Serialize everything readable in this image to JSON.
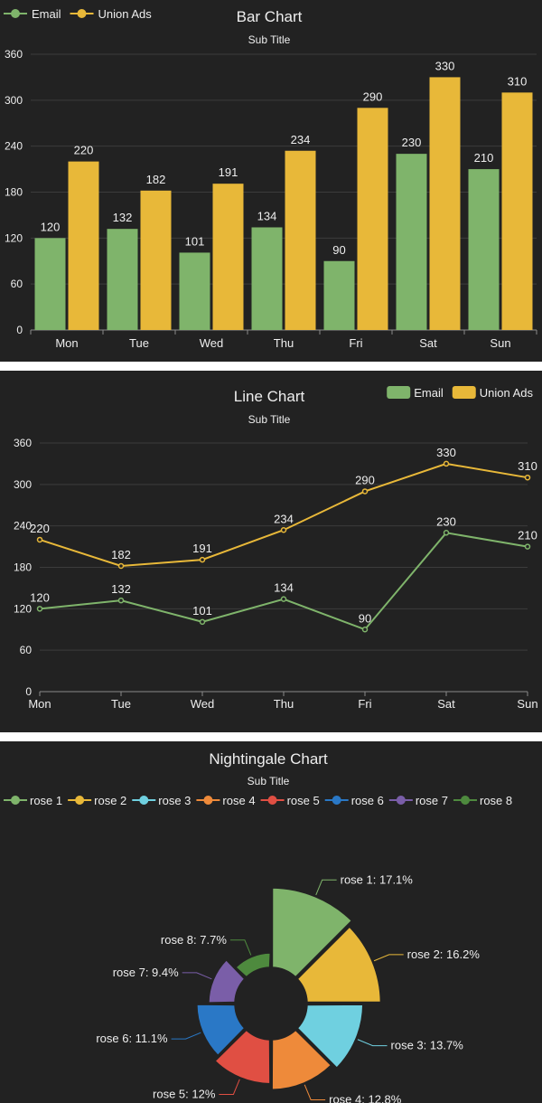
{
  "colors": {
    "background": "#222222",
    "text": "#eeeeee",
    "grid": "#3c3c3c",
    "axis": "#8a8a8a",
    "email": "#7fb46b",
    "union_ads": "#e8b839"
  },
  "chart_data": [
    {
      "type": "bar",
      "title": "Bar Chart",
      "subtitle": "Sub Title",
      "legend": {
        "position": "top-left",
        "items": [
          "Email",
          "Union Ads"
        ]
      },
      "categories": [
        "Mon",
        "Tue",
        "Wed",
        "Thu",
        "Fri",
        "Sat",
        "Sun"
      ],
      "series": [
        {
          "name": "Email",
          "values": [
            120,
            132,
            101,
            134,
            90,
            230,
            210
          ]
        },
        {
          "name": "Union Ads",
          "values": [
            220,
            182,
            191,
            234,
            290,
            330,
            310
          ]
        }
      ],
      "ylim": [
        0,
        360
      ],
      "yticks": [
        0,
        60,
        120,
        180,
        240,
        300,
        360
      ],
      "grid": true
    },
    {
      "type": "line",
      "title": "Line Chart",
      "subtitle": "Sub Title",
      "legend": {
        "position": "top-right",
        "items": [
          "Email",
          "Union Ads"
        ]
      },
      "categories": [
        "Mon",
        "Tue",
        "Wed",
        "Thu",
        "Fri",
        "Sat",
        "Sun"
      ],
      "series": [
        {
          "name": "Email",
          "values": [
            120,
            132,
            101,
            134,
            90,
            230,
            210
          ]
        },
        {
          "name": "Union Ads",
          "values": [
            220,
            182,
            191,
            234,
            290,
            330,
            310
          ]
        }
      ],
      "ylim": [
        0,
        360
      ],
      "yticks": [
        0,
        60,
        120,
        180,
        240,
        300,
        360
      ],
      "grid": true
    },
    {
      "type": "pie",
      "variant": "nightingale",
      "title": "Nightingale Chart",
      "subtitle": "Sub Title",
      "legend": {
        "position": "top"
      },
      "slices": [
        {
          "name": "rose 1",
          "value": 40,
          "label": "rose 1: 17.1%",
          "color": "#7fb46b"
        },
        {
          "name": "rose 2",
          "value": 38,
          "label": "rose 2: 16.2%",
          "color": "#e8b839"
        },
        {
          "name": "rose 3",
          "value": 32,
          "label": "rose 3: 13.7%",
          "color": "#6fd0e0"
        },
        {
          "name": "rose 4",
          "value": 30,
          "label": "rose 4: 12.8%",
          "color": "#ee8a3a"
        },
        {
          "name": "rose 5",
          "value": 28,
          "label": "rose 5: 12%",
          "color": "#e04f43"
        },
        {
          "name": "rose 6",
          "value": 26,
          "label": "rose 6: 11.1%",
          "color": "#2a78c6"
        },
        {
          "name": "rose 7",
          "value": 22,
          "label": "rose 7: 9.4%",
          "color": "#7a5ea8"
        },
        {
          "name": "rose 8",
          "value": 18,
          "label": "rose 8: 7.7%",
          "color": "#4e8a3e"
        }
      ]
    }
  ]
}
